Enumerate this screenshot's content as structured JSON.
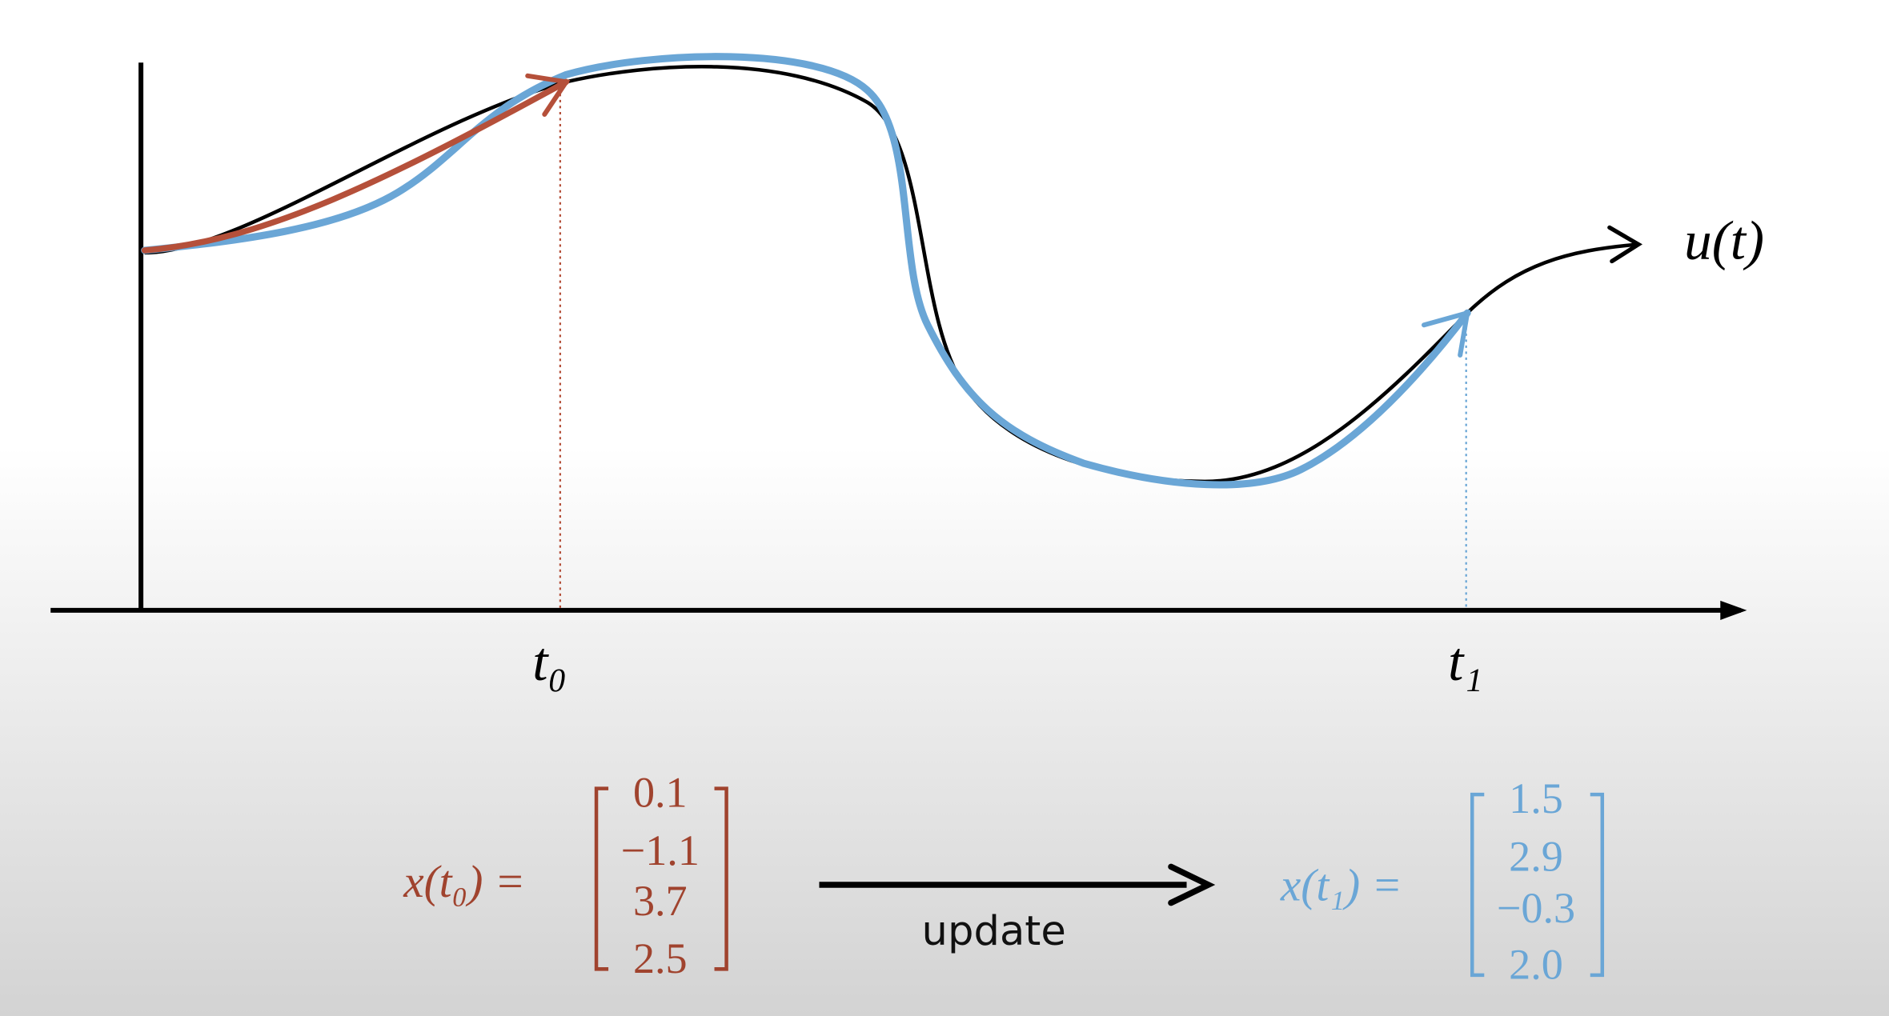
{
  "axis_label": "u(t)",
  "time_labels": [
    "t₀",
    "t₁"
  ],
  "state_0": {
    "label": "x(t₀) =",
    "entries": [
      "0.1",
      "−1.1",
      "3.7",
      "2.5"
    ]
  },
  "state_1": {
    "label": "x(t₁) =",
    "entries": [
      "1.5",
      "2.9",
      "−0.3",
      "2.0"
    ]
  },
  "arrow_label": "update"
}
